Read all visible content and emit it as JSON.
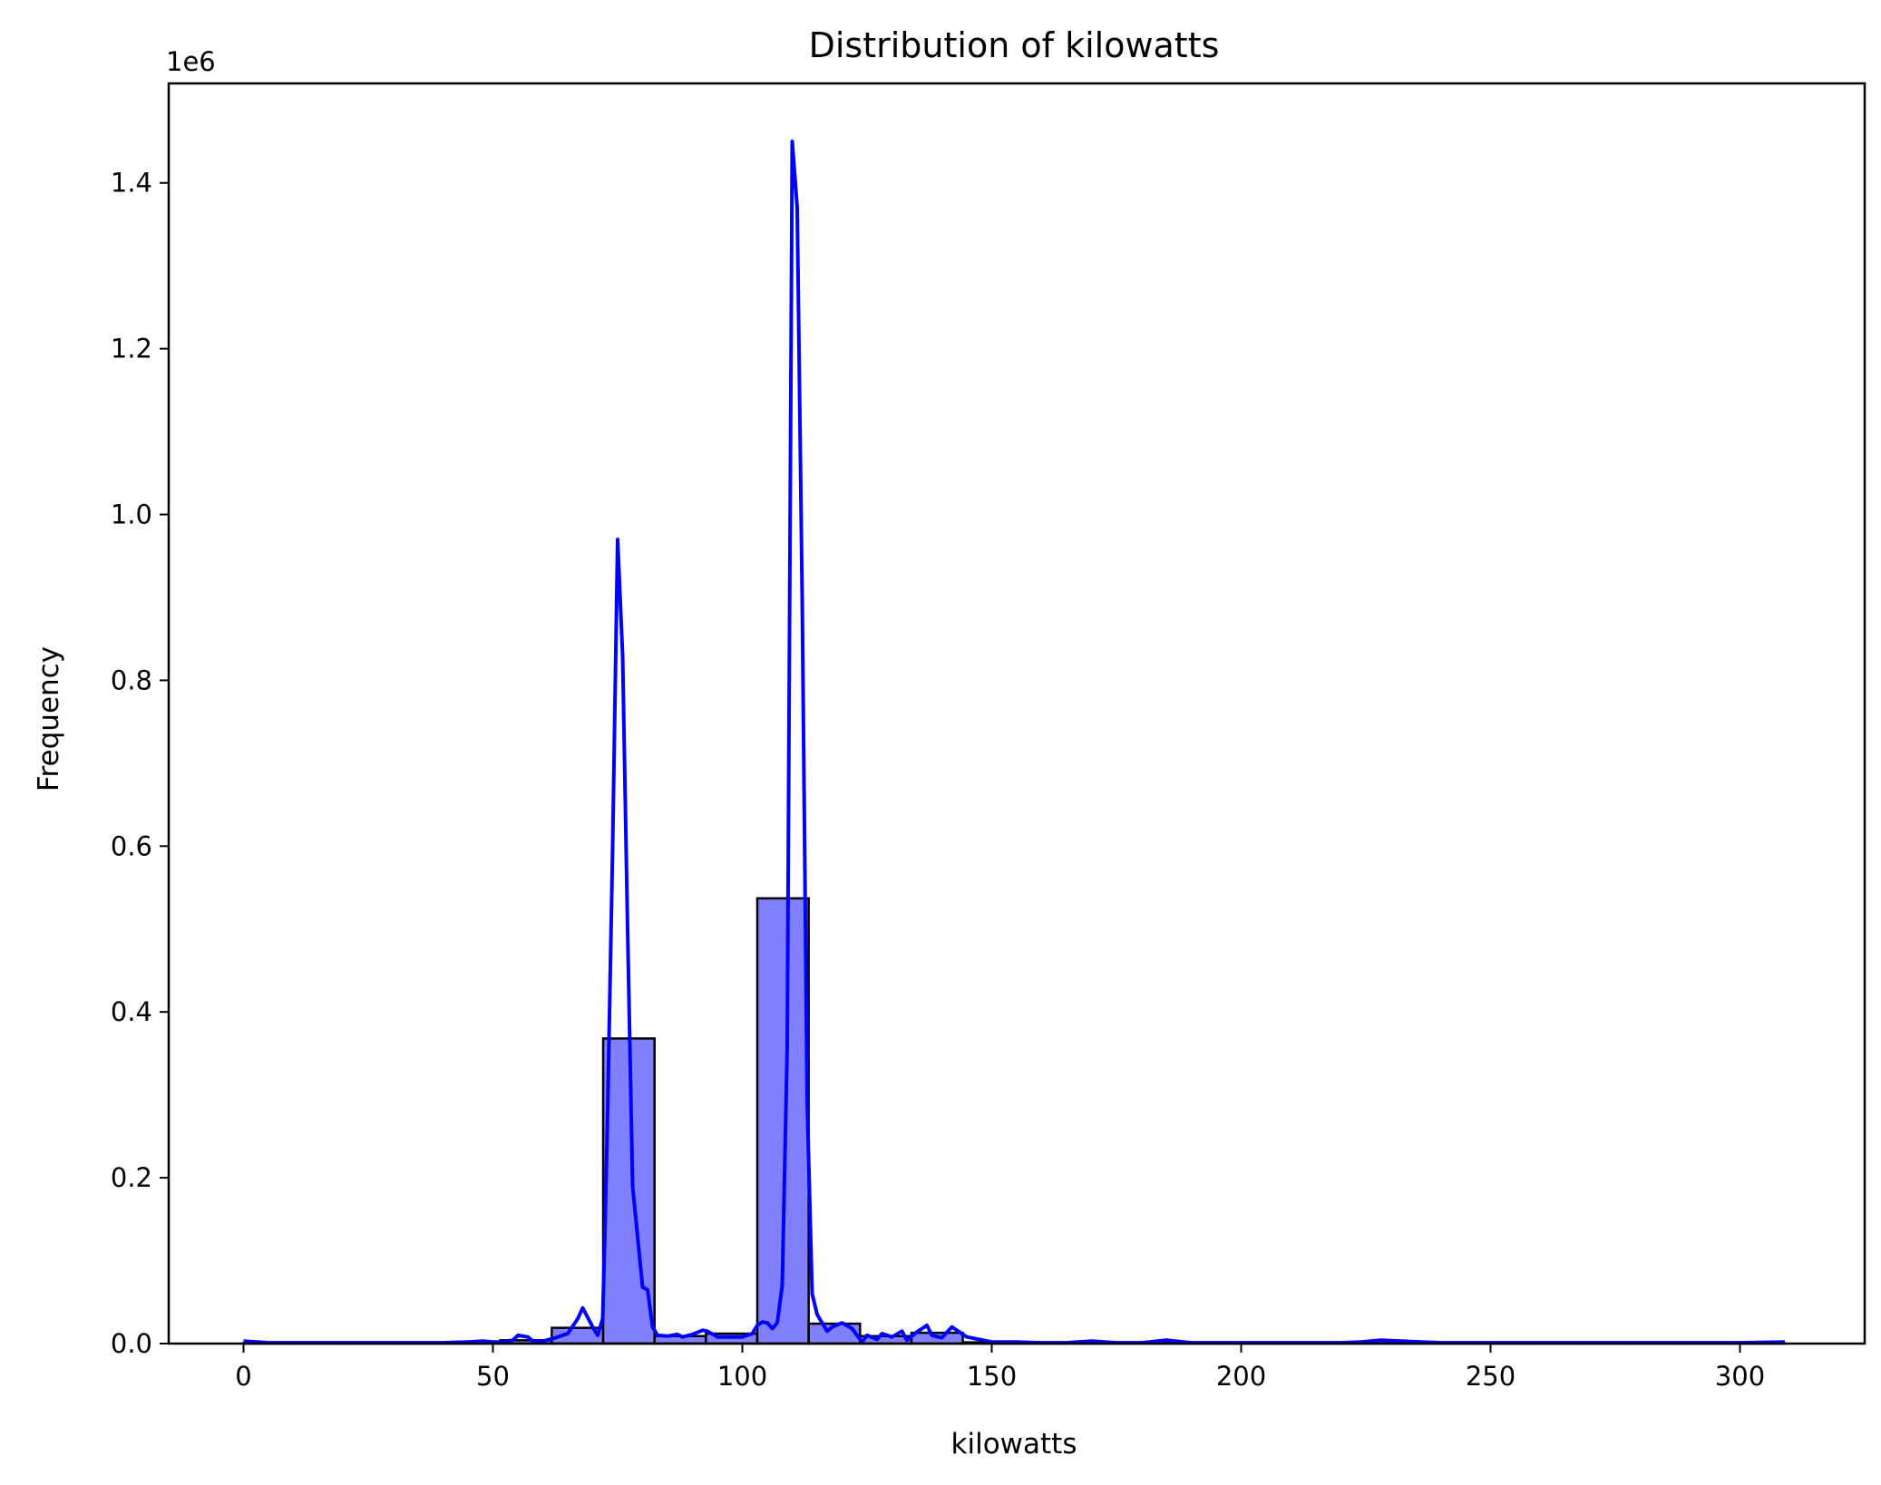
{
  "chart_data": {
    "type": "bar",
    "title": "Distribution of kilowatts",
    "xlabel": "kilowatts",
    "ylabel": "Frequency",
    "y_offset_label": "1e6",
    "xlim": [
      -15,
      325
    ],
    "ylim": [
      0,
      1.52
    ],
    "x_ticks": [
      0,
      50,
      100,
      150,
      200,
      250,
      300
    ],
    "y_ticks": [
      0.0,
      0.2,
      0.4,
      0.6,
      0.8,
      1.0,
      1.2,
      1.4
    ],
    "y_tick_labels": [
      "0.0",
      "0.2",
      "0.4",
      "0.6",
      "0.8",
      "1.0",
      "1.2",
      "1.4"
    ],
    "grid": false,
    "colors": {
      "bar_fill": "#8080ff",
      "bar_edge": "#000000",
      "kde_line": "#0000ff"
    },
    "histogram": {
      "bin_edges": [
        0,
        10.3,
        20.6,
        30.9,
        41.2,
        51.5,
        61.8,
        72.1,
        82.4,
        92.7,
        103.0,
        113.3,
        123.6,
        133.9,
        144.2,
        154.5,
        164.8,
        175.1,
        185.4,
        195.7,
        206.0,
        216.3,
        226.6,
        236.9,
        247.2,
        257.5,
        267.8,
        278.1,
        288.4,
        298.7,
        309.0
      ],
      "values": [
        0.0005,
        0.0003,
        0.0003,
        0.0004,
        0.0006,
        0.004,
        0.019,
        0.368,
        0.009,
        0.012,
        0.537,
        0.024,
        0.009,
        0.013,
        0.0015,
        0.001,
        0.0008,
        0.0006,
        0.0004,
        0.0003,
        0.0003,
        0.0008,
        0.0003,
        0.0002,
        0.0002,
        0.0002,
        0.0002,
        0.0002,
        0.0002,
        0.0003
      ]
    },
    "kde": {
      "x": [
        0,
        5,
        10,
        20,
        30,
        40,
        45,
        48,
        50,
        52,
        54,
        55,
        57,
        58,
        60,
        62,
        63,
        65,
        67,
        68,
        70,
        71,
        72,
        72.5,
        73,
        74,
        75,
        76,
        77,
        78,
        80,
        81,
        82,
        83,
        85,
        87,
        88,
        90,
        92,
        93,
        95,
        97,
        100,
        102,
        103,
        104,
        105,
        106,
        107,
        108,
        109,
        110,
        111,
        112,
        113,
        114,
        115,
        117,
        118,
        120,
        122,
        124,
        125,
        127,
        128,
        130,
        132,
        133,
        135,
        137,
        138,
        140,
        142,
        145,
        150,
        155,
        160,
        165,
        170,
        175,
        180,
        185,
        190,
        200,
        210,
        215,
        220,
        224,
        228,
        240,
        260,
        280,
        300,
        309
      ],
      "y": [
        0.003,
        0.001,
        0.001,
        0.001,
        0.001,
        0.001,
        0.002,
        0.003,
        0.002,
        0.002,
        0.004,
        0.01,
        0.008,
        0.003,
        0.003,
        0.006,
        0.008,
        0.012,
        0.03,
        0.043,
        0.02,
        0.01,
        0.03,
        0.15,
        0.28,
        0.6,
        0.97,
        0.83,
        0.5,
        0.19,
        0.068,
        0.065,
        0.02,
        0.01,
        0.009,
        0.011,
        0.008,
        0.011,
        0.016,
        0.015,
        0.008,
        0.008,
        0.008,
        0.012,
        0.022,
        0.026,
        0.025,
        0.018,
        0.025,
        0.07,
        0.36,
        1.45,
        1.37,
        0.9,
        0.29,
        0.06,
        0.035,
        0.015,
        0.02,
        0.025,
        0.018,
        0.002,
        0.01,
        0.005,
        0.012,
        0.008,
        0.015,
        0.004,
        0.014,
        0.022,
        0.01,
        0.007,
        0.02,
        0.008,
        0.002,
        0.002,
        0.001,
        0.001,
        0.003,
        0.001,
        0.001,
        0.004,
        0.001,
        0.001,
        0.001,
        0.001,
        0.001,
        0.002,
        0.004,
        0.001,
        0.001,
        0.001,
        0.001,
        0.002
      ]
    }
  }
}
